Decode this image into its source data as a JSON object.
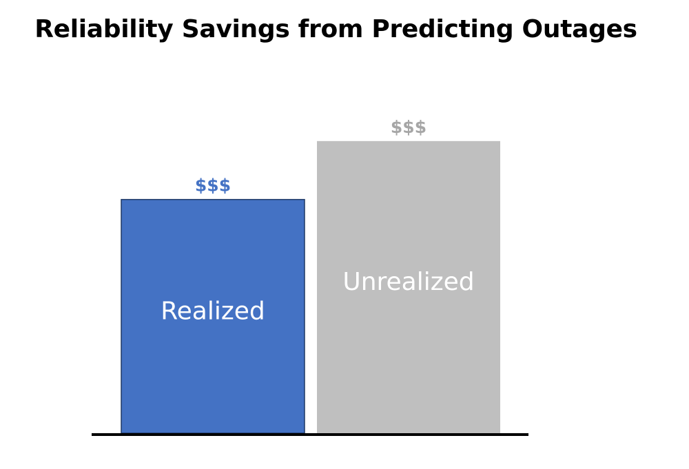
{
  "chart_data": {
    "type": "bar",
    "title": "Reliability Savings from Predicting Outages",
    "categories": [
      "Realized",
      "Unrealized"
    ],
    "values": [
      2.0,
      2.5
    ],
    "value_labels": [
      "$$$",
      "$$$"
    ],
    "colors": [
      "#4472C4",
      "#BFBFBF"
    ],
    "value_label_colors": [
      "#4472C4",
      "#A6A6A6"
    ],
    "ylim": [
      0,
      3
    ],
    "grid": false,
    "legend": "none",
    "xlabel": "",
    "ylabel": ""
  }
}
